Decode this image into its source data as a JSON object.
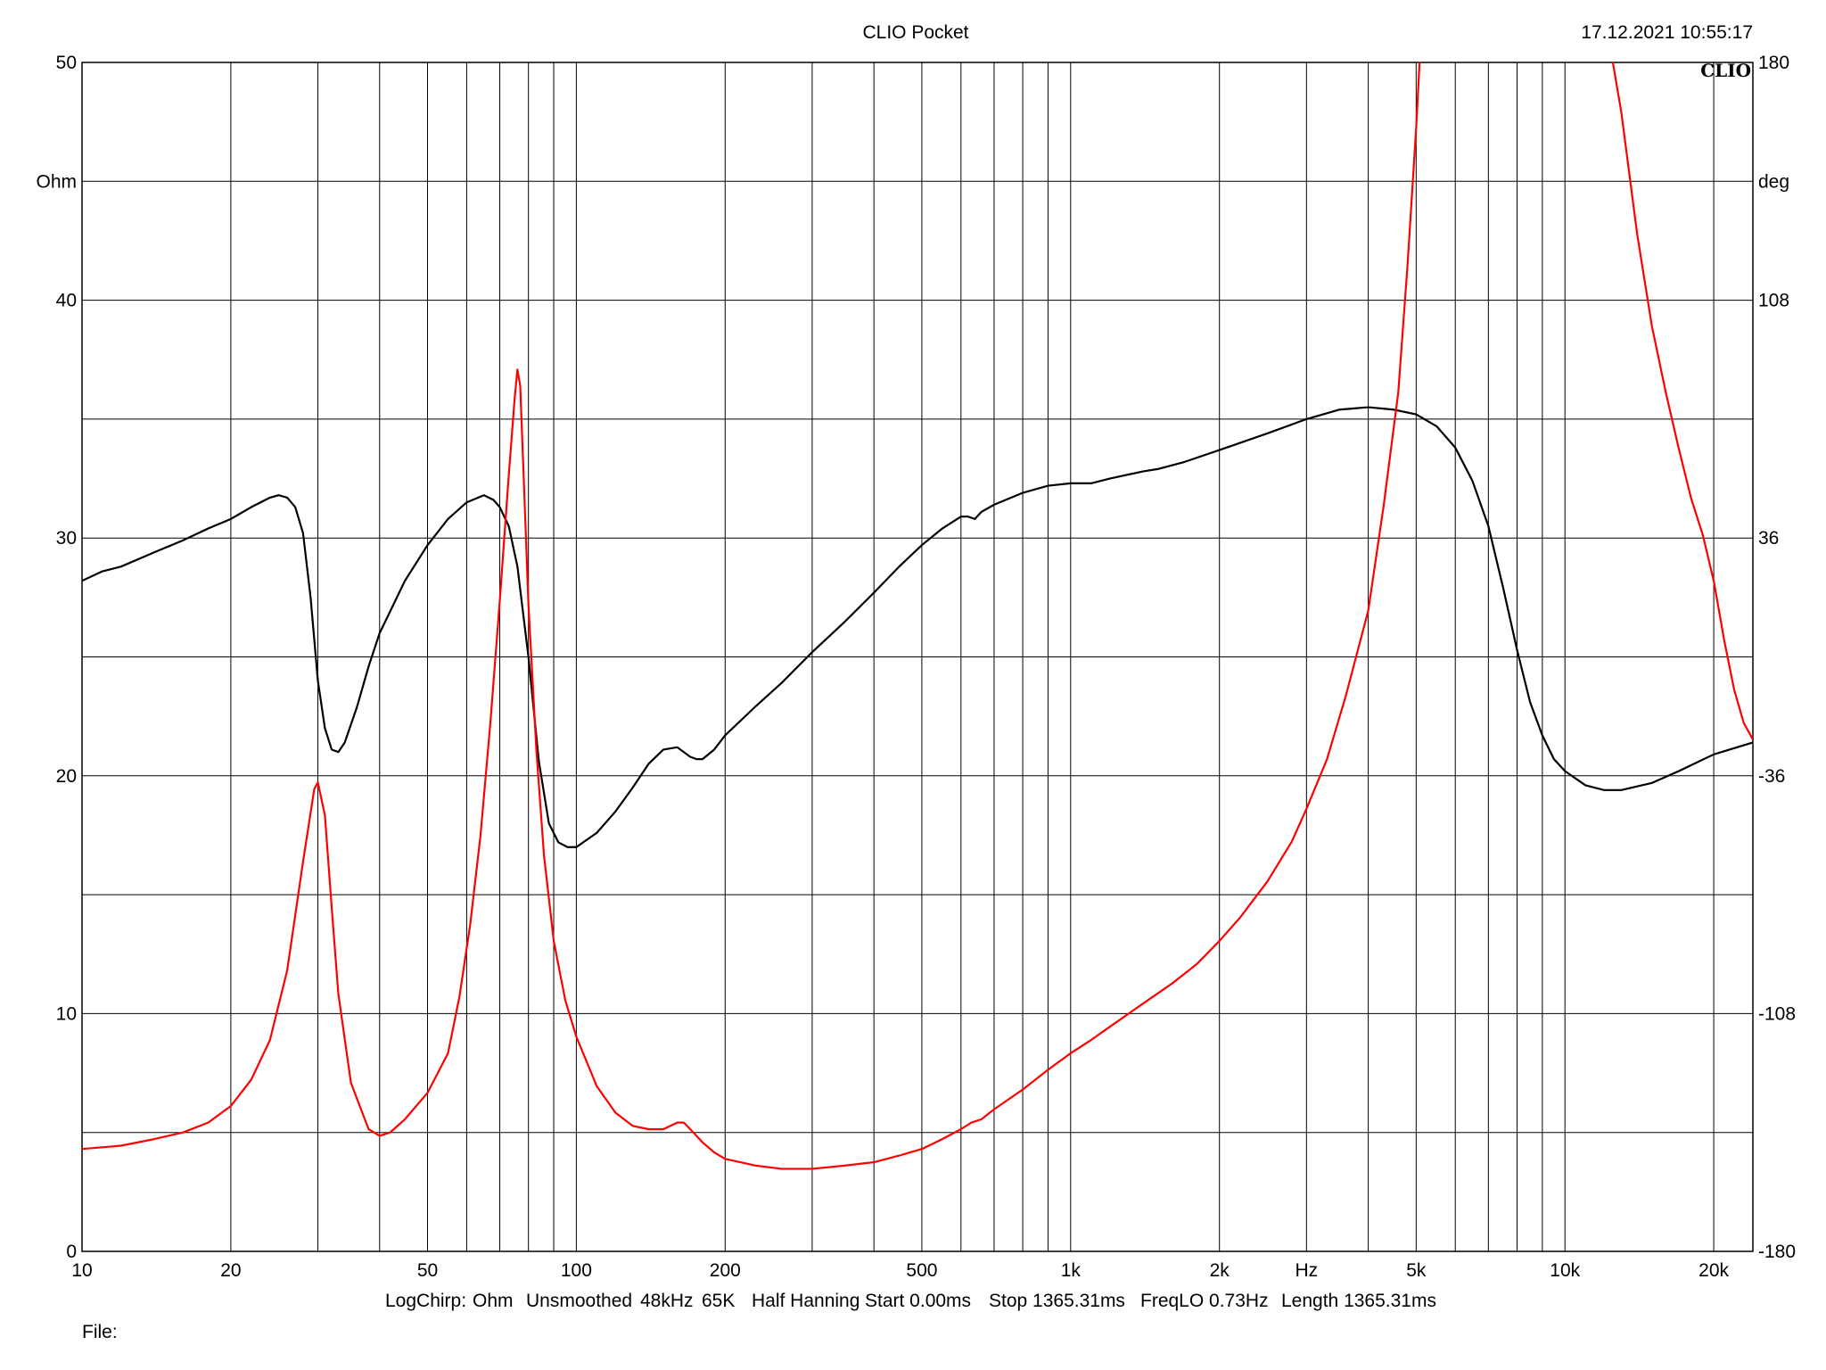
{
  "header": {
    "title": "CLIO Pocket",
    "timestamp": "17.12.2021 10:55:17",
    "logo": "CLIO"
  },
  "footer": {
    "settings": [
      "LogChirp:",
      "Ohm",
      "Unsmoothed",
      "48kHz",
      "65K",
      "Half Hanning",
      "Start 0.00ms",
      "Stop 1365.31ms",
      "FreqLO 0.73Hz",
      "Length 1365.31ms"
    ],
    "file_label": "File:"
  },
  "chart_data": {
    "type": "line",
    "title": "CLIO Pocket",
    "x_scale": "log",
    "xlim": [
      10,
      24000
    ],
    "ylim_left": [
      0,
      50
    ],
    "ylim_right": [
      -180,
      180
    ],
    "grid": true,
    "x_tick_labels": [
      {
        "value": 10,
        "label": "10"
      },
      {
        "value": 20,
        "label": "20"
      },
      {
        "value": 50,
        "label": "50"
      },
      {
        "value": 100,
        "label": "100"
      },
      {
        "value": 200,
        "label": "200"
      },
      {
        "value": 500,
        "label": "500"
      },
      {
        "value": 1000,
        "label": "1k"
      },
      {
        "value": 2000,
        "label": "2k"
      },
      {
        "value": 5000,
        "label": "5k"
      },
      {
        "value": 10000,
        "label": "10k"
      },
      {
        "value": 20000,
        "label": "20k"
      }
    ],
    "x_unit_label": "Hz",
    "x_unit_at": 3000,
    "left_tick_labels": [
      {
        "value": 0,
        "label": "0"
      },
      {
        "value": 10,
        "label": "10"
      },
      {
        "value": 20,
        "label": "20"
      },
      {
        "value": 30,
        "label": "30"
      },
      {
        "value": 40,
        "label": "40"
      },
      {
        "value": 50,
        "label": "50"
      }
    ],
    "left_unit_label": "Ohm",
    "left_unit_at": 45,
    "right_tick_labels": [
      {
        "value": -180,
        "label": "-180"
      },
      {
        "value": -108,
        "label": "-108"
      },
      {
        "value": -36,
        "label": "-36"
      },
      {
        "value": 36,
        "label": "36"
      },
      {
        "value": 108,
        "label": "108"
      },
      {
        "value": 180,
        "label": "180"
      }
    ],
    "right_unit_label": "deg",
    "right_unit_at": 144,
    "series": [
      {
        "color": "#000000",
        "axis": "left",
        "points": [
          [
            10,
            28.2
          ],
          [
            11,
            28.6
          ],
          [
            12,
            28.8
          ],
          [
            14,
            29.4
          ],
          [
            16,
            29.9
          ],
          [
            18,
            30.4
          ],
          [
            20,
            30.8
          ],
          [
            22,
            31.3
          ],
          [
            24,
            31.7
          ],
          [
            25,
            31.8
          ],
          [
            26,
            31.7
          ],
          [
            27,
            31.3
          ],
          [
            28,
            30.2
          ],
          [
            29,
            27.5
          ],
          [
            30,
            24.0
          ],
          [
            31,
            22.0
          ],
          [
            32,
            21.1
          ],
          [
            33,
            21.0
          ],
          [
            34,
            21.4
          ],
          [
            36,
            22.9
          ],
          [
            38,
            24.6
          ],
          [
            40,
            26.0
          ],
          [
            45,
            28.2
          ],
          [
            50,
            29.7
          ],
          [
            55,
            30.8
          ],
          [
            60,
            31.5
          ],
          [
            65,
            31.8
          ],
          [
            68,
            31.6
          ],
          [
            70,
            31.3
          ],
          [
            73,
            30.5
          ],
          [
            76,
            28.8
          ],
          [
            80,
            25.0
          ],
          [
            84,
            20.6
          ],
          [
            88,
            18.0
          ],
          [
            92,
            17.2
          ],
          [
            96,
            17.0
          ],
          [
            100,
            17.0
          ],
          [
            110,
            17.6
          ],
          [
            120,
            18.5
          ],
          [
            130,
            19.5
          ],
          [
            140,
            20.5
          ],
          [
            150,
            21.1
          ],
          [
            160,
            21.2
          ],
          [
            170,
            20.8
          ],
          [
            175,
            20.7
          ],
          [
            180,
            20.7
          ],
          [
            190,
            21.1
          ],
          [
            200,
            21.7
          ],
          [
            230,
            22.9
          ],
          [
            260,
            23.9
          ],
          [
            300,
            25.2
          ],
          [
            350,
            26.5
          ],
          [
            400,
            27.7
          ],
          [
            450,
            28.8
          ],
          [
            500,
            29.7
          ],
          [
            550,
            30.4
          ],
          [
            600,
            30.9
          ],
          [
            620,
            30.9
          ],
          [
            640,
            30.8
          ],
          [
            660,
            31.1
          ],
          [
            700,
            31.4
          ],
          [
            800,
            31.9
          ],
          [
            900,
            32.2
          ],
          [
            1000,
            32.3
          ],
          [
            1100,
            32.3
          ],
          [
            1200,
            32.5
          ],
          [
            1400,
            32.8
          ],
          [
            1500,
            32.9
          ],
          [
            1700,
            33.2
          ],
          [
            2000,
            33.7
          ],
          [
            2500,
            34.4
          ],
          [
            3000,
            35.0
          ],
          [
            3500,
            35.4
          ],
          [
            4000,
            35.5
          ],
          [
            4500,
            35.4
          ],
          [
            5000,
            35.2
          ],
          [
            5500,
            34.7
          ],
          [
            6000,
            33.8
          ],
          [
            6500,
            32.4
          ],
          [
            7000,
            30.5
          ],
          [
            7500,
            27.9
          ],
          [
            8000,
            25.3
          ],
          [
            8500,
            23.1
          ],
          [
            9000,
            21.7
          ],
          [
            9500,
            20.7
          ],
          [
            10000,
            20.2
          ],
          [
            11000,
            19.6
          ],
          [
            12000,
            19.4
          ],
          [
            13000,
            19.4
          ],
          [
            15000,
            19.7
          ],
          [
            17000,
            20.2
          ],
          [
            20000,
            20.9
          ],
          [
            24000,
            21.4
          ]
        ]
      },
      {
        "color": "#ff0000",
        "axis": "right",
        "points": [
          [
            10,
            -149
          ],
          [
            12,
            -148
          ],
          [
            14,
            -146
          ],
          [
            16,
            -144
          ],
          [
            18,
            -141
          ],
          [
            20,
            -136
          ],
          [
            22,
            -128
          ],
          [
            24,
            -116
          ],
          [
            26,
            -95
          ],
          [
            28,
            -62
          ],
          [
            29.5,
            -40
          ],
          [
            30,
            -38
          ],
          [
            31,
            -48
          ],
          [
            32,
            -76
          ],
          [
            33,
            -102
          ],
          [
            35,
            -129
          ],
          [
            38,
            -143
          ],
          [
            40,
            -145
          ],
          [
            42,
            -144
          ],
          [
            45,
            -140
          ],
          [
            50,
            -132
          ],
          [
            55,
            -120
          ],
          [
            58,
            -103
          ],
          [
            61,
            -81
          ],
          [
            64,
            -54
          ],
          [
            67,
            -20
          ],
          [
            70,
            17
          ],
          [
            73,
            55
          ],
          [
            75,
            78
          ],
          [
            76,
            87
          ],
          [
            77,
            82
          ],
          [
            78,
            60
          ],
          [
            80,
            16
          ],
          [
            83,
            -28
          ],
          [
            86,
            -60
          ],
          [
            90,
            -86
          ],
          [
            95,
            -104
          ],
          [
            100,
            -115
          ],
          [
            110,
            -130
          ],
          [
            120,
            -138
          ],
          [
            130,
            -142
          ],
          [
            140,
            -143
          ],
          [
            150,
            -143
          ],
          [
            160,
            -141
          ],
          [
            165,
            -141
          ],
          [
            170,
            -143
          ],
          [
            180,
            -147
          ],
          [
            190,
            -150
          ],
          [
            200,
            -152
          ],
          [
            230,
            -154
          ],
          [
            260,
            -155
          ],
          [
            300,
            -155
          ],
          [
            350,
            -154
          ],
          [
            400,
            -153
          ],
          [
            450,
            -151
          ],
          [
            500,
            -149
          ],
          [
            550,
            -146
          ],
          [
            600,
            -143
          ],
          [
            630,
            -141
          ],
          [
            660,
            -140
          ],
          [
            700,
            -137
          ],
          [
            800,
            -131
          ],
          [
            900,
            -125
          ],
          [
            1000,
            -120
          ],
          [
            1100,
            -116
          ],
          [
            1200,
            -112
          ],
          [
            1400,
            -105
          ],
          [
            1600,
            -99
          ],
          [
            1800,
            -93
          ],
          [
            2000,
            -86
          ],
          [
            2200,
            -79
          ],
          [
            2500,
            -68
          ],
          [
            2800,
            -56
          ],
          [
            3000,
            -46
          ],
          [
            3300,
            -31
          ],
          [
            3600,
            -12
          ],
          [
            4000,
            14
          ],
          [
            4300,
            46
          ],
          [
            4600,
            80
          ],
          [
            4800,
            118
          ],
          [
            5000,
            160
          ],
          [
            5080,
            180
          ]
        ]
      },
      {
        "color": "#ff0000",
        "axis": "right",
        "points": [
          [
            12500,
            180
          ],
          [
            13000,
            165
          ],
          [
            14000,
            128
          ],
          [
            15000,
            100
          ],
          [
            16000,
            80
          ],
          [
            17000,
            63
          ],
          [
            18000,
            48
          ],
          [
            19000,
            37
          ],
          [
            20000,
            23
          ],
          [
            21000,
            5
          ],
          [
            22000,
            -10
          ],
          [
            23000,
            -20
          ],
          [
            24000,
            -25
          ]
        ]
      }
    ]
  }
}
